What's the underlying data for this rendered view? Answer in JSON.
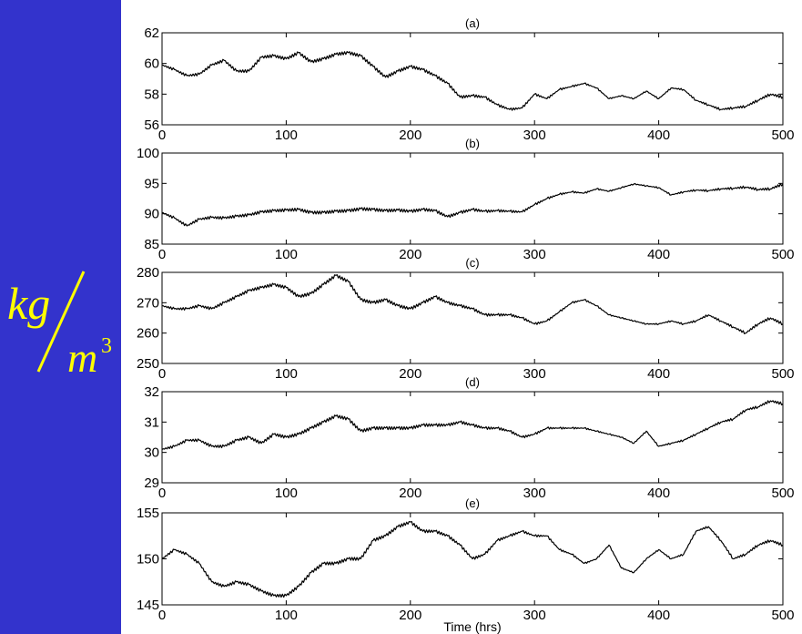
{
  "unit_label": {
    "main": "kg",
    "denominator": "m",
    "exponent": "3"
  },
  "colors": {
    "background": "#3333cc",
    "unit_text": "#ffff00",
    "plot_bg": "#ffffff",
    "line": "#000000"
  },
  "chart_data": [
    {
      "type": "line",
      "title": "(a)",
      "xlabel": "",
      "ylabel": "",
      "xlim": [
        0,
        500
      ],
      "ylim": [
        56,
        62
      ],
      "xticks": [
        0,
        100,
        200,
        300,
        400,
        500
      ],
      "xtick_labels": [
        "0",
        "100",
        "200",
        "300",
        "400",
        "500"
      ],
      "yticks": [
        56,
        58,
        60,
        62
      ],
      "ytick_labels": [
        "56",
        "58",
        "60",
        "62"
      ],
      "series": [
        {
          "x": [
            0,
            10,
            20,
            30,
            40,
            50,
            60,
            70,
            80,
            90,
            100,
            110,
            120,
            130,
            140,
            150,
            160,
            170,
            180,
            190,
            200,
            210,
            220,
            230,
            240,
            250,
            260,
            270,
            280,
            290,
            300,
            310,
            320,
            330,
            340,
            350,
            360,
            370,
            380,
            390,
            400,
            410,
            420,
            430,
            440,
            450,
            460,
            470,
            480,
            490,
            500
          ],
          "values": [
            59.9,
            59.6,
            59.2,
            59.3,
            59.9,
            60.2,
            59.5,
            59.5,
            60.4,
            60.5,
            60.3,
            60.7,
            60.1,
            60.3,
            60.6,
            60.7,
            60.5,
            59.8,
            59.1,
            59.5,
            59.8,
            59.6,
            59.2,
            58.7,
            57.8,
            57.9,
            57.8,
            57.3,
            57.0,
            57.1,
            58.0,
            57.7,
            58.3,
            58.5,
            58.7,
            58.4,
            57.7,
            57.9,
            57.7,
            58.2,
            57.7,
            58.4,
            58.3,
            57.6,
            57.3,
            57.0,
            57.1,
            57.2,
            57.6,
            58.0,
            57.8
          ]
        }
      ]
    },
    {
      "type": "line",
      "title": "(b)",
      "xlabel": "",
      "ylabel": "",
      "xlim": [
        0,
        500
      ],
      "ylim": [
        85,
        100
      ],
      "xticks": [
        0,
        100,
        200,
        300,
        400,
        500
      ],
      "xtick_labels": [
        "0",
        "100",
        "200",
        "300",
        "400",
        "500"
      ],
      "yticks": [
        85,
        90,
        95,
        100
      ],
      "ytick_labels": [
        "85",
        "90",
        "95",
        "100"
      ],
      "series": [
        {
          "x": [
            0,
            10,
            20,
            30,
            40,
            50,
            60,
            70,
            80,
            90,
            100,
            110,
            120,
            130,
            140,
            150,
            160,
            170,
            180,
            190,
            200,
            210,
            220,
            230,
            240,
            250,
            260,
            270,
            280,
            290,
            300,
            310,
            320,
            330,
            340,
            350,
            360,
            370,
            380,
            390,
            400,
            410,
            420,
            430,
            440,
            450,
            460,
            470,
            480,
            490,
            500
          ],
          "values": [
            90.2,
            89.3,
            88.0,
            89.1,
            89.4,
            89.3,
            89.6,
            89.8,
            90.3,
            90.5,
            90.6,
            90.7,
            90.2,
            90.2,
            90.4,
            90.5,
            90.8,
            90.7,
            90.5,
            90.6,
            90.4,
            90.7,
            90.5,
            89.5,
            90.2,
            90.7,
            90.4,
            90.5,
            90.4,
            90.3,
            91.5,
            92.5,
            93.2,
            93.6,
            93.4,
            94.1,
            93.7,
            94.3,
            94.9,
            94.6,
            94.3,
            93.1,
            93.6,
            93.9,
            93.8,
            94.1,
            94.2,
            94.4,
            94.0,
            94.1,
            94.9
          ]
        }
      ]
    },
    {
      "type": "line",
      "title": "(c)",
      "xlabel": "",
      "ylabel": "",
      "xlim": [
        0,
        500
      ],
      "ylim": [
        250,
        280
      ],
      "xticks": [
        0,
        100,
        200,
        300,
        400,
        500
      ],
      "xtick_labels": [
        "0",
        "100",
        "200",
        "300",
        "400",
        "500"
      ],
      "yticks": [
        250,
        260,
        270,
        280
      ],
      "ytick_labels": [
        "250",
        "260",
        "270",
        "280"
      ],
      "series": [
        {
          "x": [
            0,
            10,
            20,
            30,
            40,
            50,
            60,
            70,
            80,
            90,
            100,
            110,
            120,
            130,
            140,
            150,
            160,
            170,
            180,
            190,
            200,
            210,
            220,
            230,
            240,
            250,
            260,
            270,
            280,
            290,
            300,
            310,
            320,
            330,
            340,
            350,
            360,
            370,
            380,
            390,
            400,
            410,
            420,
            430,
            440,
            450,
            460,
            470,
            480,
            490,
            500
          ],
          "values": [
            269,
            268,
            268,
            269,
            268,
            270,
            272,
            274,
            275,
            276,
            275,
            272,
            273,
            276,
            279,
            277,
            271,
            270,
            271,
            269,
            268,
            270,
            272,
            270,
            269,
            268,
            266,
            266,
            266,
            265,
            263,
            264,
            267,
            270,
            271,
            269,
            266,
            265,
            264,
            263,
            263,
            264,
            263,
            264,
            266,
            264,
            262,
            260,
            263,
            265,
            263
          ]
        }
      ]
    },
    {
      "type": "line",
      "title": "(d)",
      "xlabel": "",
      "ylabel": "",
      "xlim": [
        0,
        500
      ],
      "ylim": [
        29,
        32
      ],
      "xticks": [
        0,
        100,
        200,
        300,
        400,
        500
      ],
      "xtick_labels": [
        "0",
        "100",
        "200",
        "300",
        "400",
        "500"
      ],
      "yticks": [
        29,
        30,
        31,
        32
      ],
      "ytick_labels": [
        "29",
        "30",
        "31",
        "32"
      ],
      "series": [
        {
          "x": [
            0,
            10,
            20,
            30,
            40,
            50,
            60,
            70,
            80,
            90,
            100,
            110,
            120,
            130,
            140,
            150,
            160,
            170,
            180,
            190,
            200,
            210,
            220,
            230,
            240,
            250,
            260,
            270,
            280,
            290,
            300,
            310,
            320,
            330,
            340,
            350,
            360,
            370,
            380,
            390,
            400,
            410,
            420,
            430,
            440,
            450,
            460,
            470,
            480,
            490,
            500
          ],
          "values": [
            30.1,
            30.2,
            30.4,
            30.4,
            30.2,
            30.2,
            30.4,
            30.5,
            30.3,
            30.6,
            30.5,
            30.6,
            30.8,
            31.0,
            31.2,
            31.1,
            30.7,
            30.8,
            30.8,
            30.8,
            30.8,
            30.9,
            30.9,
            30.9,
            31.0,
            30.9,
            30.8,
            30.8,
            30.7,
            30.5,
            30.6,
            30.8,
            30.8,
            30.8,
            30.8,
            30.7,
            30.6,
            30.5,
            30.3,
            30.7,
            30.2,
            30.3,
            30.4,
            30.6,
            30.8,
            31.0,
            31.1,
            31.4,
            31.5,
            31.7,
            31.6
          ]
        }
      ]
    },
    {
      "type": "line",
      "title": "(e)",
      "xlabel": "Time (hrs)",
      "ylabel": "",
      "xlim": [
        0,
        500
      ],
      "ylim": [
        145,
        155
      ],
      "xticks": [
        0,
        100,
        200,
        300,
        400,
        500
      ],
      "xtick_labels": [
        "0",
        "100",
        "200",
        "300",
        "400",
        "500"
      ],
      "yticks": [
        145,
        150,
        155
      ],
      "ytick_labels": [
        "145",
        "150",
        "155"
      ],
      "series": [
        {
          "x": [
            0,
            10,
            20,
            30,
            40,
            50,
            60,
            70,
            80,
            90,
            100,
            110,
            120,
            130,
            140,
            150,
            160,
            170,
            180,
            190,
            200,
            210,
            220,
            230,
            240,
            250,
            260,
            270,
            280,
            290,
            300,
            310,
            320,
            330,
            340,
            350,
            360,
            370,
            380,
            390,
            400,
            410,
            420,
            430,
            440,
            450,
            460,
            470,
            480,
            490,
            500
          ],
          "values": [
            150.0,
            151.0,
            150.5,
            149.5,
            147.5,
            147.0,
            147.5,
            147.2,
            146.5,
            146.0,
            146.0,
            147.0,
            148.5,
            149.5,
            149.5,
            150.0,
            150.0,
            152.0,
            152.5,
            153.5,
            154.0,
            153.0,
            153.0,
            152.5,
            151.5,
            150.0,
            150.5,
            152.0,
            152.5,
            153.0,
            152.5,
            152.5,
            151.0,
            150.5,
            149.5,
            150.0,
            151.5,
            149.0,
            148.5,
            150.0,
            151.0,
            150.0,
            150.5,
            153.0,
            153.5,
            152.0,
            150.0,
            150.5,
            151.5,
            152.0,
            151.5
          ]
        }
      ]
    }
  ]
}
